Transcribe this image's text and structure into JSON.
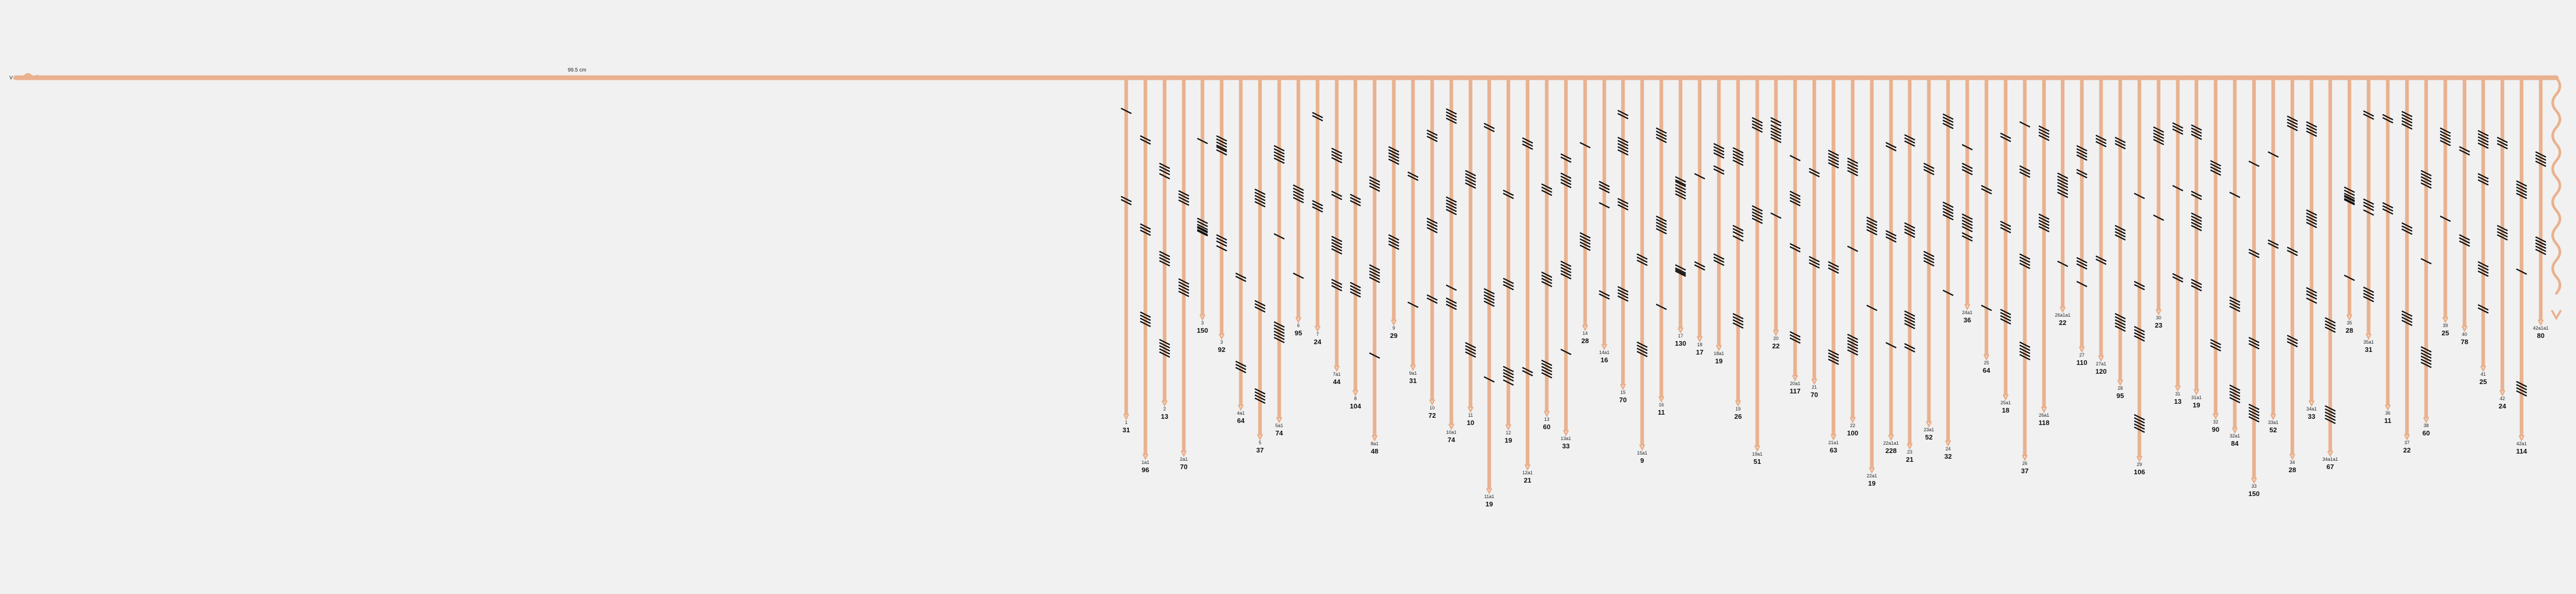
{
  "main_line": {
    "start_label": "V",
    "length_label": "99.5 cm",
    "color": "#e9b18e"
  },
  "branches": [
    {
      "id": "1",
      "value": "31"
    },
    {
      "id": "1a1",
      "value": "96"
    },
    {
      "id": "2",
      "value": "13"
    },
    {
      "id": "2a1",
      "value": "70"
    },
    {
      "id": "3",
      "value": "150"
    },
    {
      "id": "3",
      "value": "92"
    },
    {
      "id": "4a1",
      "value": "64"
    },
    {
      "id": "5",
      "value": "37"
    },
    {
      "id": "5a1",
      "value": "74"
    },
    {
      "id": "6",
      "value": "95"
    },
    {
      "id": "7",
      "value": "24"
    },
    {
      "id": "7a1",
      "value": "44"
    },
    {
      "id": "8",
      "value": "104"
    },
    {
      "id": "8a1",
      "value": "48"
    },
    {
      "id": "9",
      "value": "29"
    },
    {
      "id": "9a1",
      "value": "31"
    },
    {
      "id": "10",
      "value": "72"
    },
    {
      "id": "10a1",
      "value": "74"
    },
    {
      "id": "11",
      "value": "10"
    },
    {
      "id": "11a1",
      "value": "19"
    },
    {
      "id": "12",
      "value": "19"
    },
    {
      "id": "12a1",
      "value": "21"
    },
    {
      "id": "13",
      "value": "60"
    },
    {
      "id": "13a1",
      "value": "33"
    },
    {
      "id": "14",
      "value": "28"
    },
    {
      "id": "14a1",
      "value": "16"
    },
    {
      "id": "15",
      "value": "70"
    },
    {
      "id": "15a1",
      "value": "9"
    },
    {
      "id": "16",
      "value": "11"
    },
    {
      "id": "17",
      "value": "130"
    },
    {
      "id": "18",
      "value": "17"
    },
    {
      "id": "18a1",
      "value": "19"
    },
    {
      "id": "19",
      "value": "26"
    },
    {
      "id": "19a1",
      "value": "51"
    },
    {
      "id": "20",
      "value": "22"
    },
    {
      "id": "20a1",
      "value": "117"
    },
    {
      "id": "21",
      "value": "70"
    },
    {
      "id": "21a1",
      "value": "63"
    },
    {
      "id": "22",
      "value": "100"
    },
    {
      "id": "22a1",
      "value": "19"
    },
    {
      "id": "22a1a1",
      "value": "228"
    },
    {
      "id": "23",
      "value": "21"
    },
    {
      "id": "23a1",
      "value": "52"
    },
    {
      "id": "24",
      "value": "32"
    },
    {
      "id": "24a1",
      "value": "36"
    },
    {
      "id": "25",
      "value": "64"
    },
    {
      "id": "25a1",
      "value": "18"
    },
    {
      "id": "26",
      "value": "37"
    },
    {
      "id": "26a1",
      "value": "118"
    },
    {
      "id": "26a1a1",
      "value": "22"
    },
    {
      "id": "27",
      "value": "110"
    },
    {
      "id": "27a1",
      "value": "120"
    },
    {
      "id": "28",
      "value": "95"
    },
    {
      "id": "29",
      "value": "106"
    },
    {
      "id": "30",
      "value": "23"
    },
    {
      "id": "31",
      "value": "13"
    },
    {
      "id": "31a1",
      "value": "19"
    },
    {
      "id": "32",
      "value": "90"
    },
    {
      "id": "32a1",
      "value": "84"
    },
    {
      "id": "33",
      "value": "150"
    },
    {
      "id": "33a1",
      "value": "52"
    },
    {
      "id": "34",
      "value": "28"
    },
    {
      "id": "34a1",
      "value": "33"
    },
    {
      "id": "34a1a1",
      "value": "67"
    },
    {
      "id": "35",
      "value": "28"
    },
    {
      "id": "35a1",
      "value": "31"
    },
    {
      "id": "36",
      "value": "11"
    },
    {
      "id": "37",
      "value": "22"
    },
    {
      "id": "38",
      "value": "60"
    },
    {
      "id": "39",
      "value": "25"
    },
    {
      "id": "40",
      "value": "78"
    },
    {
      "id": "41",
      "value": "25"
    },
    {
      "id": "42",
      "value": "24"
    },
    {
      "id": "42a1",
      "value": "114"
    },
    {
      "id": "42a1a1",
      "value": "80"
    }
  ]
}
